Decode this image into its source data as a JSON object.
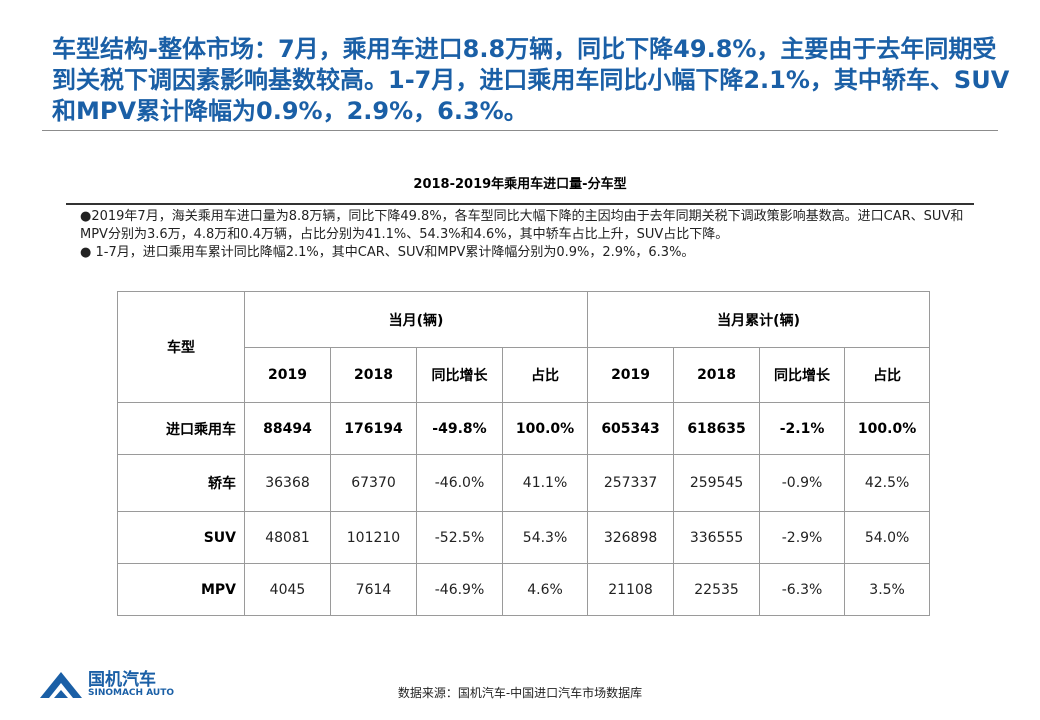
{
  "headline": "车型结构-整体市场：7月，乘用车进口8.8万辆，同比下降49.8%，主要由于去年同期受到关税下调因素影响基数较高。1-7月，进口乘用车同比小幅下降2.1%，其中轿车、SUV和MPV累计降幅为0.9%，2.9%，6.3%。",
  "table_title": "2018-2019年乘用车进口量-分车型",
  "notes": [
    "●2019年7月，海关乘用车进口量为8.8万辆，同比下降49.8%，各车型同比大幅下降的主因均由于去年同期关税下调政策影响基数高。进口CAR、SUV和MPV分别为3.6万，4.8万和0.4万辆，占比分别为41.1%、54.3%和4.6%，其中轿车占比上升，SUV占比下降。",
    "● 1-7月，进口乘用车累计同比降幅2.1%，其中CAR、SUV和MPV累计降幅分别为0.9%，2.9%，6.3%。"
  ],
  "table": {
    "type_header": "车型",
    "group_month": "当月(辆)",
    "group_cumulative": "当月累计(辆)",
    "sub_headers": [
      "2019",
      "2018",
      "同比增长",
      "占比",
      "2019",
      "2018",
      "同比增长",
      "占比"
    ],
    "rows": [
      {
        "label": "进口乘用车",
        "cells": [
          "88494",
          "176194",
          "-49.8%",
          "100.0%",
          "605343",
          "618635",
          "-2.1%",
          "100.0%"
        ]
      },
      {
        "label": "轿车",
        "cells": [
          "36368",
          "67370",
          "-46.0%",
          "41.1%",
          "257337",
          "259545",
          "-0.9%",
          "42.5%"
        ]
      },
      {
        "label": "SUV",
        "cells": [
          "48081",
          "101210",
          "-52.5%",
          "54.3%",
          "326898",
          "336555",
          "-2.9%",
          "54.0%"
        ]
      },
      {
        "label": "MPV",
        "cells": [
          "4045",
          "7614",
          "-46.9%",
          "4.6%",
          "21108",
          "22535",
          "-6.3%",
          "3.5%"
        ]
      }
    ]
  },
  "logo": {
    "name_cn": "国机汽车",
    "name_en": "SINOMACH AUTO",
    "icon": "sinomach-logo-icon",
    "color": "#1a5fa6"
  },
  "source": "数据来源：国机汽车-中国进口汽车市场数据库"
}
